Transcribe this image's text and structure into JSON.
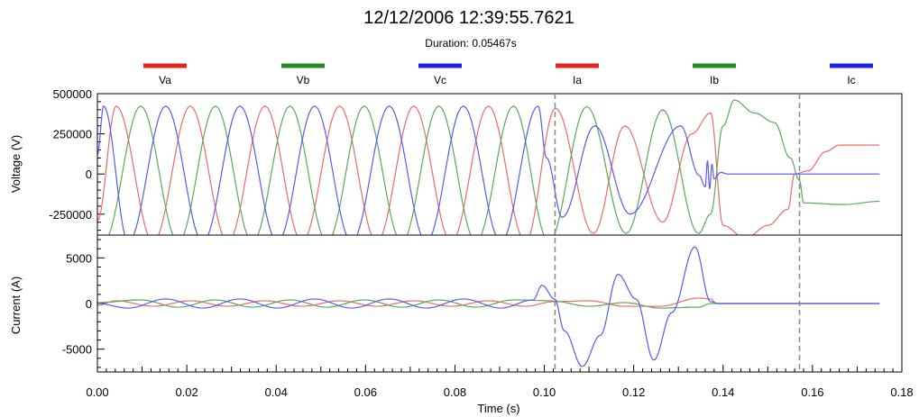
{
  "chart_data": {
    "type": "line",
    "title": "12/12/2006 12:39:55.7621",
    "subtitle": "Duration: 0.05467s",
    "xlabel": "Time (s)",
    "xlim": [
      0,
      0.18
    ],
    "x_ticks": [
      "0.00",
      "0.02",
      "0.04",
      "0.06",
      "0.08",
      "0.10",
      "0.12",
      "0.14",
      "0.16",
      "0.18"
    ],
    "x_tick_values": [
      0,
      0.02,
      0.04,
      0.06,
      0.08,
      0.1,
      0.12,
      0.14,
      0.16,
      0.18
    ],
    "markers": [
      0.1024,
      0.1571
    ],
    "legend_position": "top",
    "legend": [
      {
        "name": "Va",
        "color": "#e52222"
      },
      {
        "name": "Vb",
        "color": "#1f8c1f"
      },
      {
        "name": "Vc",
        "color": "#1f1fe6"
      },
      {
        "name": "Ia",
        "color": "#e52222"
      },
      {
        "name": "Ib",
        "color": "#1f8c1f"
      },
      {
        "name": "Ic",
        "color": "#1f1fe6"
      }
    ],
    "voltage": {
      "ylabel": "Voltage (V)",
      "ylim": [
        -380000,
        500000
      ],
      "y_ticks": [
        "500000",
        "250000",
        "0",
        "-250000"
      ],
      "y_tick_values": [
        500000,
        250000,
        0,
        -250000
      ],
      "series": [
        {
          "name": "Va",
          "color": "#ee6a6a",
          "points": [
            [
              0,
              -290000
            ],
            [
              0.0042,
              423000
            ],
            [
              0.0125,
              -423000
            ],
            [
              0.0208,
              423000
            ],
            [
              0.0292,
              -423000
            ],
            [
              0.0375,
              423000
            ],
            [
              0.0458,
              -423000
            ],
            [
              0.0542,
              423000
            ],
            [
              0.0625,
              -423000
            ],
            [
              0.0708,
              423000
            ],
            [
              0.0792,
              -423000
            ],
            [
              0.0875,
              423000
            ],
            [
              0.0958,
              -423000
            ],
            [
              0.1025,
              410000
            ],
            [
              0.111,
              -370000
            ],
            [
              0.118,
              300000
            ],
            [
              0.1265,
              -300000
            ],
            [
              0.133,
              250000
            ],
            [
              0.1372,
              380000
            ],
            [
              0.14,
              -320000
            ],
            [
              0.145,
              -400000
            ],
            [
              0.15,
              -320000
            ],
            [
              0.1545,
              -220000
            ],
            [
              0.156,
              0
            ],
            [
              0.159,
              20000
            ],
            [
              0.163,
              140000
            ],
            [
              0.166,
              180000
            ],
            [
              0.175,
              180000
            ]
          ]
        },
        {
          "name": "Vb",
          "color": "#5aa85a",
          "points": [
            [
              0,
              -380000
            ],
            [
              0.0014,
              -423000
            ],
            [
              0.0097,
              423000
            ],
            [
              0.0181,
              -423000
            ],
            [
              0.0264,
              423000
            ],
            [
              0.0347,
              -423000
            ],
            [
              0.0431,
              423000
            ],
            [
              0.0514,
              -423000
            ],
            [
              0.0597,
              423000
            ],
            [
              0.0681,
              -423000
            ],
            [
              0.0764,
              423000
            ],
            [
              0.0847,
              -423000
            ],
            [
              0.0931,
              423000
            ],
            [
              0.101,
              -423000
            ],
            [
              0.1095,
              420000
            ],
            [
              0.1183,
              -370000
            ],
            [
              0.1265,
              400000
            ],
            [
              0.1345,
              -370000
            ],
            [
              0.1372,
              -250000
            ],
            [
              0.14,
              300000
            ],
            [
              0.1425,
              460000
            ],
            [
              0.147,
              380000
            ],
            [
              0.1515,
              320000
            ],
            [
              0.155,
              100000
            ],
            [
              0.1571,
              -40000
            ],
            [
              0.158,
              -180000
            ],
            [
              0.167,
              -190000
            ],
            [
              0.175,
              -170000
            ]
          ]
        },
        {
          "name": "Vc",
          "color": "#5a5af2",
          "points": [
            [
              0,
              120000
            ],
            [
              0.0014,
              423000
            ],
            [
              0.0069,
              -423000
            ],
            [
              0.0153,
              423000
            ],
            [
              0.0236,
              -423000
            ],
            [
              0.0319,
              423000
            ],
            [
              0.0403,
              -423000
            ],
            [
              0.0486,
              423000
            ],
            [
              0.0569,
              -423000
            ],
            [
              0.0653,
              423000
            ],
            [
              0.0736,
              -423000
            ],
            [
              0.0819,
              423000
            ],
            [
              0.0903,
              -423000
            ],
            [
              0.0986,
              423000
            ],
            [
              0.1005,
              100000
            ],
            [
              0.104,
              -270000
            ],
            [
              0.1113,
              300000
            ],
            [
              0.1192,
              -250000
            ],
            [
              0.1305,
              300000
            ],
            [
              0.1347,
              -10000
            ],
            [
              0.136,
              -80000
            ],
            [
              0.1365,
              80000
            ],
            [
              0.137,
              -90000
            ],
            [
              0.1375,
              60000
            ],
            [
              0.138,
              -30000
            ],
            [
              0.1395,
              10000
            ],
            [
              0.141,
              0
            ],
            [
              0.175,
              0
            ]
          ]
        }
      ]
    },
    "current": {
      "ylabel": "Current (A)",
      "ylim": [
        -7500,
        7500
      ],
      "y_ticks": [
        "5000",
        "0",
        "-5000"
      ],
      "y_tick_values": [
        5000,
        0,
        -5000
      ],
      "series": [
        {
          "name": "Ia",
          "color": "#ee6a6a",
          "points": [
            [
              0,
              -200
            ],
            [
              0.0042,
              300
            ],
            [
              0.0125,
              -300
            ],
            [
              0.0208,
              300
            ],
            [
              0.0292,
              -300
            ],
            [
              0.0375,
              300
            ],
            [
              0.0458,
              -300
            ],
            [
              0.0542,
              300
            ],
            [
              0.0625,
              -300
            ],
            [
              0.0708,
              300
            ],
            [
              0.0792,
              -300
            ],
            [
              0.0875,
              300
            ],
            [
              0.0958,
              -300
            ],
            [
              0.102,
              200
            ],
            [
              0.11,
              300
            ],
            [
              0.118,
              -300
            ],
            [
              0.126,
              -300
            ],
            [
              0.1345,
              600
            ],
            [
              0.1372,
              500
            ],
            [
              0.1385,
              0
            ],
            [
              0.175,
              0
            ]
          ]
        },
        {
          "name": "Ib",
          "color": "#5aa85a",
          "points": [
            [
              0,
              100
            ],
            [
              0.0097,
              400
            ],
            [
              0.0181,
              -400
            ],
            [
              0.0264,
              400
            ],
            [
              0.0347,
              -400
            ],
            [
              0.0431,
              400
            ],
            [
              0.0514,
              -400
            ],
            [
              0.0597,
              400
            ],
            [
              0.0681,
              -400
            ],
            [
              0.0764,
              400
            ],
            [
              0.0847,
              -400
            ],
            [
              0.0931,
              400
            ],
            [
              0.1015,
              300
            ],
            [
              0.11,
              -300
            ],
            [
              0.118,
              100
            ],
            [
              0.126,
              -500
            ],
            [
              0.1345,
              -400
            ],
            [
              0.1372,
              0
            ],
            [
              0.175,
              0
            ]
          ]
        },
        {
          "name": "Ic",
          "color": "#5a5af2",
          "points": [
            [
              0,
              0
            ],
            [
              0.0069,
              -500
            ],
            [
              0.0153,
              500
            ],
            [
              0.0236,
              -500
            ],
            [
              0.0319,
              500
            ],
            [
              0.0403,
              -500
            ],
            [
              0.0486,
              500
            ],
            [
              0.0569,
              -500
            ],
            [
              0.0653,
              500
            ],
            [
              0.0736,
              -500
            ],
            [
              0.0819,
              500
            ],
            [
              0.0903,
              -500
            ],
            [
              0.0975,
              400
            ],
            [
              0.0995,
              2000
            ],
            [
              0.1023,
              500
            ],
            [
              0.1045,
              -3000
            ],
            [
              0.1085,
              -6900
            ],
            [
              0.1125,
              -3500
            ],
            [
              0.1165,
              3200
            ],
            [
              0.1205,
              500
            ],
            [
              0.1245,
              -6200
            ],
            [
              0.1285,
              -1000
            ],
            [
              0.1337,
              6200
            ],
            [
              0.1372,
              200
            ],
            [
              0.139,
              0
            ],
            [
              0.175,
              0
            ]
          ]
        }
      ]
    }
  }
}
